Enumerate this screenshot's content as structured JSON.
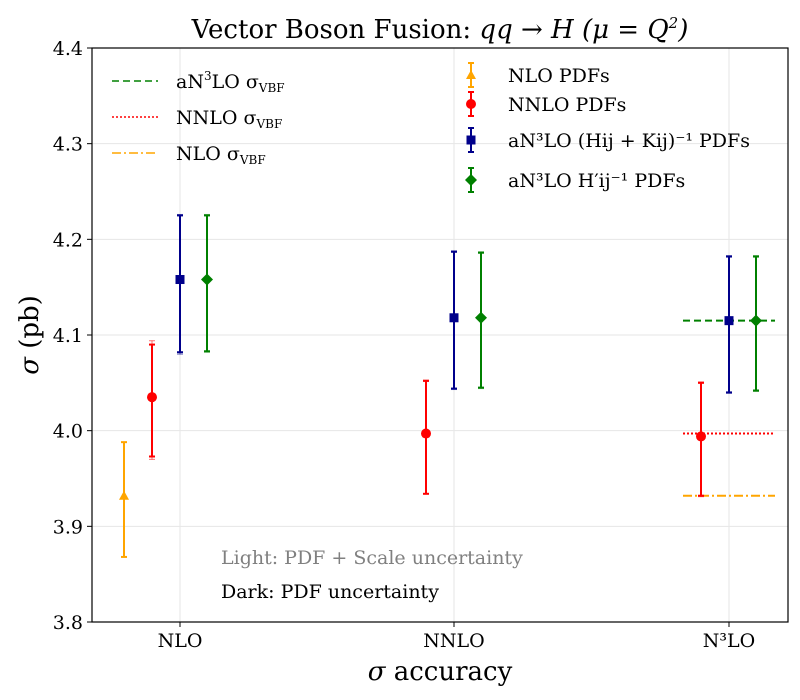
{
  "chart_data": {
    "type": "scatter",
    "title": "Vector Boson Fusion: qq → H (μ = Q²)",
    "title_parts": {
      "text": "Vector Boson Fusion: ",
      "formula": "qq → H (μ = Q",
      "sup": "2",
      "tail": ")"
    },
    "xlabel_parts": {
      "sym": "σ",
      "rest": " accuracy"
    },
    "ylabel_parts": {
      "sym": "σ",
      "rest": " (pb)"
    },
    "ylim": [
      3.8,
      4.4
    ],
    "yticks": [
      "3.8",
      "3.9",
      "4.0",
      "4.1",
      "4.2",
      "4.3",
      "4.4"
    ],
    "categories": [
      "NLO",
      "NNLO",
      "N³LO"
    ],
    "grid": true,
    "series": [
      {
        "name": "NLO PDFs",
        "color": "#FFA500",
        "marker": "triangle",
        "points": [
          {
            "category": "NLO",
            "y": 3.932,
            "err_total": [
              3.868,
              3.988
            ],
            "err_pdf": [
              3.868,
              3.988
            ]
          }
        ]
      },
      {
        "name": "NNLO PDFs",
        "color": "#FF0000",
        "marker": "circle",
        "points": [
          {
            "category": "NLO",
            "y": 4.035,
            "err_total": [
              3.97,
              4.094
            ],
            "err_pdf": [
              3.973,
              4.09
            ]
          },
          {
            "category": "NNLO",
            "y": 3.997,
            "err_total": [
              3.934,
              4.053
            ],
            "err_pdf": [
              3.934,
              4.052
            ]
          },
          {
            "category": "N³LO",
            "y": 3.994,
            "err_total": [
              3.931,
              4.051
            ],
            "err_pdf": [
              3.932,
              4.05
            ]
          }
        ]
      },
      {
        "name": "aN³LO (H_ij + K_ij)⁻¹ PDFs",
        "color": "#00008B",
        "marker": "square",
        "points": [
          {
            "category": "NLO",
            "y": 4.158,
            "err_total": [
              4.08,
              4.226
            ],
            "err_pdf": [
              4.082,
              4.225
            ]
          },
          {
            "category": "NNLO",
            "y": 4.118,
            "err_total": [
              4.043,
              4.188
            ],
            "err_pdf": [
              4.044,
              4.187
            ]
          },
          {
            "category": "N³LO",
            "y": 4.115,
            "err_total": [
              4.039,
              4.183
            ],
            "err_pdf": [
              4.04,
              4.182
            ]
          }
        ]
      },
      {
        "name": "aN³LO H'_ij⁻¹ PDFs",
        "color": "#008000",
        "marker": "diamond",
        "points": [
          {
            "category": "NLO",
            "y": 4.158,
            "err_total": [
              4.082,
              4.226
            ],
            "err_pdf": [
              4.083,
              4.225
            ]
          },
          {
            "category": "NNLO",
            "y": 4.118,
            "err_total": [
              4.044,
              4.187
            ],
            "err_pdf": [
              4.045,
              4.186
            ]
          },
          {
            "category": "N³LO",
            "y": 4.115,
            "err_total": [
              4.041,
              4.183
            ],
            "err_pdf": [
              4.042,
              4.182
            ]
          }
        ]
      }
    ],
    "reference_lines": [
      {
        "name": "aN³LO σ_VBF",
        "color": "#008000",
        "style": "dashed",
        "y": 4.115,
        "category": "N³LO"
      },
      {
        "name": "NNLO σ_VBF",
        "color": "#FF0000",
        "style": "dotted",
        "y": 3.997,
        "category": "N³LO"
      },
      {
        "name": "NLO σ_VBF",
        "color": "#FFA500",
        "style": "dashdot",
        "y": 3.932,
        "category": "N³LO"
      }
    ],
    "legend_left": [
      {
        "pre": "aN",
        "sup": "3",
        "post": "LO σ",
        "sub": "VBF",
        "color": "#008000",
        "style": "dashed"
      },
      {
        "pre": "NNLO σ",
        "sup": "",
        "post": "",
        "sub": "VBF",
        "color": "#FF0000",
        "style": "dotted"
      },
      {
        "pre": "NLO σ",
        "sup": "",
        "post": "",
        "sub": "VBF",
        "color": "#FFA500",
        "style": "dashdot"
      }
    ],
    "legend_left_placement": "upper-left",
    "legend_right": [
      {
        "label": "NLO PDFs",
        "color": "#FFA500",
        "marker": "triangle"
      },
      {
        "label": "NNLO PDFs",
        "color": "#FF0000",
        "marker": "circle"
      },
      {
        "label": "aN³LO (Hij + Kij)⁻¹ PDFs",
        "color": "#00008B",
        "marker": "square"
      },
      {
        "label": "aN³LO H′ij⁻¹ PDFs",
        "color": "#008000",
        "marker": "diamond"
      }
    ],
    "legend_right_placement": "upper-center",
    "annotations": [
      "Light: PDF + Scale uncertainty",
      "Dark: PDF uncertainty"
    ]
  }
}
